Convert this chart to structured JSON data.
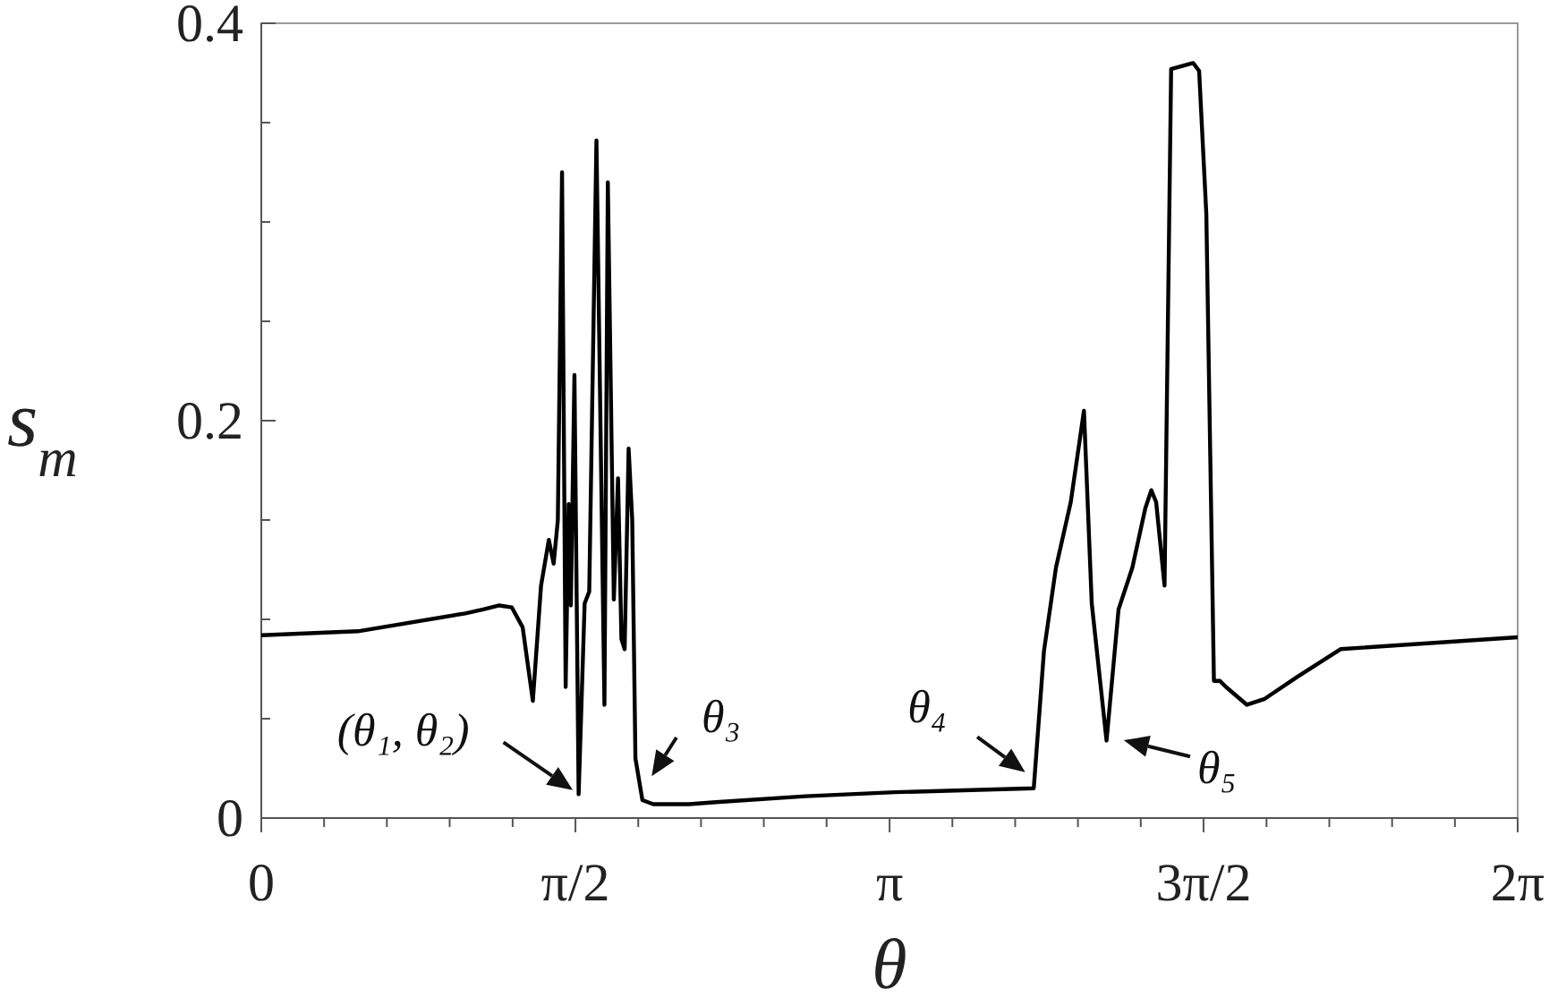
{
  "chart_data": {
    "type": "line",
    "xlabel": "θ",
    "ylabel": "s$_{m}$",
    "x": [
      0,
      0.483,
      1.02,
      1.11,
      1.19,
      1.253,
      1.307,
      1.358,
      1.399,
      1.438,
      1.462,
      1.483,
      1.504,
      1.522,
      1.537,
      1.548,
      1.566,
      1.587,
      1.617,
      1.64,
      1.676,
      1.716,
      1.733,
      1.763,
      1.784,
      1.801,
      1.817,
      1.837,
      1.855,
      1.871,
      1.906,
      1.96,
      2.139,
      2.273,
      2.721,
      3.168,
      3.863,
      3.914,
      3.974,
      4.048,
      4.114,
      4.153,
      4.227,
      4.287,
      4.356,
      4.421,
      4.451,
      4.475,
      4.517,
      4.55,
      4.66,
      4.69,
      4.726,
      4.764,
      4.794,
      4.824,
      4.929,
      5.018,
      5.18,
      5.397,
      6.283
    ],
    "series": [
      {
        "color": "#000000",
        "values": [
          0.092,
          0.094,
          0.103,
          0.105,
          0.107,
          0.106,
          0.096,
          0.059,
          0.117,
          0.14,
          0.128,
          0.15,
          0.325,
          0.066,
          0.158,
          0.107,
          0.223,
          0.012,
          0.108,
          0.114,
          0.341,
          0.057,
          0.32,
          0.11,
          0.171,
          0.09,
          0.085,
          0.186,
          0.15,
          0.03,
          0.009,
          0.007,
          0.007,
          0.008,
          0.011,
          0.013,
          0.015,
          0.084,
          0.126,
          0.159,
          0.205,
          0.108,
          0.039,
          0.105,
          0.126,
          0.156,
          0.165,
          0.159,
          0.117,
          0.377,
          0.38,
          0.376,
          0.304,
          0.069,
          0.069,
          0.066,
          0.057,
          0.06,
          0.071,
          0.085,
          0.091
        ]
      }
    ],
    "xlim": [
      0,
      6.283
    ],
    "ylim": [
      0,
      0.4
    ],
    "xticks": [
      {
        "value": 0,
        "label": "0"
      },
      {
        "value": 0.314,
        "label": null
      },
      {
        "value": 0.628,
        "label": null
      },
      {
        "value": 0.942,
        "label": null
      },
      {
        "value": 1.257,
        "label": null
      },
      {
        "value": 1.571,
        "label": "π/2"
      },
      {
        "value": 1.885,
        "label": null
      },
      {
        "value": 2.199,
        "label": null
      },
      {
        "value": 2.513,
        "label": null
      },
      {
        "value": 2.827,
        "label": null
      },
      {
        "value": 3.142,
        "label": "π"
      },
      {
        "value": 3.456,
        "label": null
      },
      {
        "value": 3.77,
        "label": null
      },
      {
        "value": 4.084,
        "label": null
      },
      {
        "value": 4.398,
        "label": null
      },
      {
        "value": 4.712,
        "label": "3π/2"
      },
      {
        "value": 5.027,
        "label": null
      },
      {
        "value": 5.341,
        "label": null
      },
      {
        "value": 5.655,
        "label": null
      },
      {
        "value": 5.969,
        "label": null
      },
      {
        "value": 6.283,
        "label": "2π"
      }
    ],
    "yticks": [
      0,
      {
        "value": 0.05,
        "label": null
      },
      {
        "value": 0.1,
        "label": null
      },
      {
        "value": 0.15,
        "label": null
      },
      {
        "value": 0.2,
        "label": "0.2"
      },
      {
        "value": 0.25,
        "label": null
      },
      {
        "value": 0.3,
        "label": null
      },
      {
        "value": 0.35,
        "label": null
      },
      {
        "value": 0.4,
        "label": "0.4"
      }
    ],
    "grid": false,
    "marker": "none",
    "line_style": "solid",
    "annotations": [
      {
        "text": "(θ₁, θ₂)",
        "x": 1.587,
        "y": 0.012
      },
      {
        "text": "θ₃",
        "x": 1.933,
        "y": 0.018
      },
      {
        "text": "θ₄",
        "x": 3.849,
        "y": 0.021
      },
      {
        "text": "θ₅",
        "x": 4.278,
        "y": 0.04
      }
    ]
  }
}
